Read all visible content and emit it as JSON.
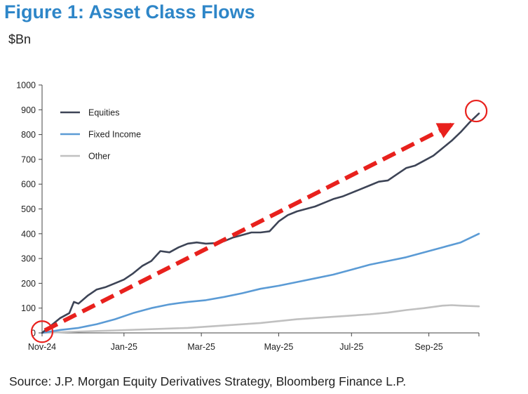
{
  "figure": {
    "title": "Figure 1: Asset Class Flows",
    "unit_label": "$Bn",
    "source": "Source: J.P. Morgan Equity Derivatives Strategy, Bloomberg Finance L.P."
  },
  "chart_data": {
    "type": "line",
    "title": "Figure 1: Asset Class Flows",
    "ylabel": "$Bn",
    "xlabel": "",
    "ylim": [
      0,
      1000
    ],
    "yticks": [
      0,
      100,
      200,
      300,
      400,
      500,
      600,
      700,
      800,
      900,
      1000
    ],
    "xlim": [
      0,
      48
    ],
    "xticks": [
      {
        "pos": 0,
        "label": "Nov-24"
      },
      {
        "pos": 9,
        "label": "Jan-25"
      },
      {
        "pos": 17.5,
        "label": "Mar-25"
      },
      {
        "pos": 26,
        "label": "May-25"
      },
      {
        "pos": 34,
        "label": "Jul-25"
      },
      {
        "pos": 42.5,
        "label": "Sep-25"
      }
    ],
    "legend_position": "top-left",
    "series": [
      {
        "name": "Equities",
        "color": "#3d4456",
        "x": [
          0,
          1,
          2,
          3,
          3.5,
          4,
          5,
          6,
          7,
          8,
          9,
          10,
          11,
          12,
          13,
          14,
          15,
          16,
          17,
          18,
          19,
          20,
          21,
          22,
          23,
          24,
          25,
          26,
          27,
          28,
          29,
          30,
          31,
          32,
          33,
          34,
          35,
          36,
          37,
          38,
          39,
          40,
          41,
          42,
          43,
          44,
          45,
          46,
          47,
          48
        ],
        "values": [
          0,
          30,
          60,
          80,
          125,
          118,
          150,
          175,
          185,
          200,
          215,
          240,
          270,
          290,
          330,
          325,
          345,
          360,
          365,
          360,
          362,
          370,
          385,
          395,
          405,
          405,
          410,
          450,
          475,
          490,
          500,
          510,
          525,
          540,
          550,
          565,
          580,
          595,
          610,
          615,
          640,
          665,
          675,
          695,
          715,
          745,
          775,
          810,
          850,
          885
        ]
      },
      {
        "name": "Fixed Income",
        "color": "#5b9bd5",
        "x": [
          0,
          2,
          4,
          6,
          8,
          10,
          12,
          14,
          16,
          18,
          20,
          22,
          24,
          26,
          28,
          30,
          32,
          34,
          36,
          38,
          40,
          42,
          44,
          46,
          48
        ],
        "values": [
          0,
          12,
          20,
          35,
          55,
          80,
          100,
          115,
          125,
          132,
          145,
          160,
          178,
          190,
          205,
          220,
          235,
          255,
          275,
          290,
          305,
          325,
          345,
          365,
          400
        ]
      },
      {
        "name": "Other",
        "color": "#c0c0c0",
        "x": [
          0,
          4,
          8,
          12,
          16,
          20,
          24,
          28,
          32,
          36,
          38,
          40,
          42,
          44,
          45,
          46,
          48
        ],
        "values": [
          0,
          5,
          10,
          15,
          20,
          30,
          40,
          55,
          65,
          75,
          82,
          92,
          100,
          110,
          112,
          110,
          107
        ]
      }
    ],
    "annotation": {
      "type": "dashed-arrow",
      "color": "#e8211d",
      "from": {
        "x": 0.3,
        "y": 10
      },
      "to": {
        "x": 45,
        "y": 840
      },
      "circles": [
        {
          "x": 0,
          "y": 5
        },
        {
          "x": 47.7,
          "y": 895
        }
      ]
    }
  }
}
